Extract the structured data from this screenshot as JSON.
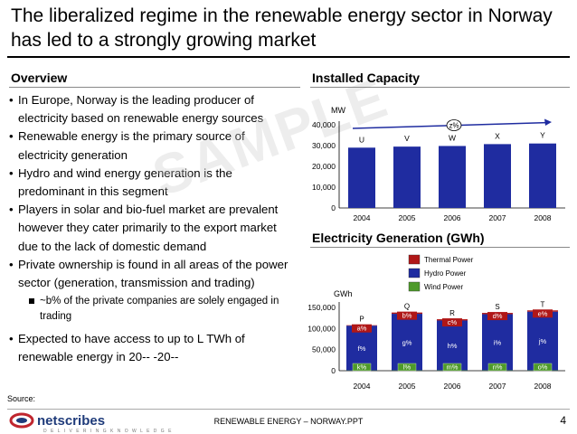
{
  "title": "The liberalized regime in the renewable energy sector in Norway has led to a strongly growing market",
  "overview": {
    "heading": "Overview",
    "bullets": [
      "In Europe, Norway is the leading producer of electricity based on renewable energy sources",
      "Renewable energy is the primary source of electricity generation",
      "Hydro and wind energy generation is the predominant in this segment",
      "Players in solar and bio-fuel market are prevalent however they cater primarily to the export market due to the lack of domestic demand",
      "Private ownership is found in all areas of the power sector (generation, transmission and trading)"
    ],
    "sub_bullet": "~b% of the private companies are solely engaged in trading",
    "last_bullet": "Expected to have access to up to L TWh of renewable energy in 20-- -20--"
  },
  "watermark": "SAMPLE",
  "installed_capacity": {
    "heading": "Installed Capacity"
  },
  "electricity_generation": {
    "heading": "Electricity Generation (GWh)"
  },
  "chart_data": [
    {
      "type": "bar",
      "title": "Installed Capacity",
      "ylabel": "MW",
      "categories": [
        "2004",
        "2005",
        "2006",
        "2007",
        "2008"
      ],
      "values": [
        29000,
        29500,
        29800,
        30700,
        31000
      ],
      "data_labels": [
        "U",
        "V",
        "W",
        "X",
        "Y"
      ],
      "yticks": [
        "0",
        "10,000",
        "20,000",
        "30,000",
        "40,000"
      ],
      "ylim": [
        0,
        40000
      ],
      "growth_label": "z%",
      "bar_color": "#1f2ca0",
      "grid": false
    },
    {
      "type": "bar",
      "stacked": true,
      "title": "Electricity Generation (GWh)",
      "ylabel": "GWh",
      "categories": [
        "2004",
        "2005",
        "2006",
        "2007",
        "2008"
      ],
      "yticks": [
        "0",
        "50,000",
        "100,000",
        "150,000"
      ],
      "ylim": [
        0,
        150000
      ],
      "totals_labels": [
        "P",
        "Q",
        "R",
        "S",
        "T"
      ],
      "legend_position": "top-right",
      "series": [
        {
          "name": "Wind Power",
          "color": "#4e9a2a",
          "values": [
            800,
            900,
            1000,
            1000,
            1000
          ],
          "labels": [
            "k%",
            "l%",
            "m%",
            "n%",
            "o%"
          ]
        },
        {
          "name": "Hydro Power",
          "color": "#1f2ca0",
          "values": [
            106000,
            134000,
            118000,
            133000,
            139000
          ],
          "labels": [
            "f%",
            "g%",
            "h%",
            "i%",
            "j%"
          ]
        },
        {
          "name": "Thermal Power",
          "color": "#b01717",
          "values": [
            1000,
            3000,
            3000,
            3000,
            3000
          ],
          "labels": [
            "a%",
            "b%",
            "c%",
            "d%",
            "e%"
          ]
        }
      ]
    }
  ],
  "footer": {
    "source": "Source:",
    "center": "RENEWABLE ENERGY – NORWAY.PPT",
    "page": "4",
    "logo": "netscribes",
    "logo_sub": "D E L I V E R I N G  K N O W L E D G E"
  }
}
